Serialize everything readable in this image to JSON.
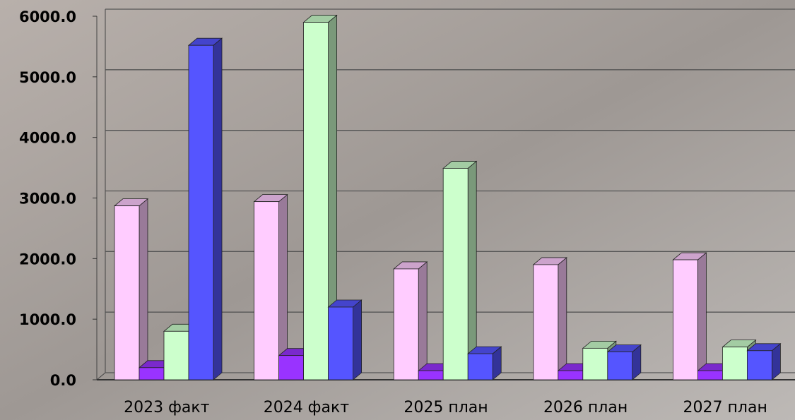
{
  "chart_data": {
    "type": "bar3d",
    "categories": [
      "2023 факт",
      "2024 факт",
      "2025 план",
      "2026 план",
      "2027 план"
    ],
    "series": [
      {
        "color": "#ffccff",
        "values": [
          2870,
          2940,
          1830,
          1900,
          1980
        ]
      },
      {
        "color": "#9933ff",
        "values": [
          200,
          400,
          150,
          150,
          150
        ]
      },
      {
        "color": "#ccffcc",
        "values": [
          800,
          5900,
          3490,
          520,
          540
        ]
      },
      {
        "color": "#5555ff",
        "values": [
          5520,
          1200,
          430,
          460,
          480
        ]
      }
    ],
    "ylim": [
      0,
      6000
    ],
    "yticks": [
      {
        "value": 0,
        "label": "0.0"
      },
      {
        "value": 1000,
        "label": "1000.0"
      },
      {
        "value": 2000,
        "label": "2000.0"
      },
      {
        "value": 3000,
        "label": "3000.0"
      },
      {
        "value": 4000,
        "label": "4000.0"
      },
      {
        "value": 5000,
        "label": "5000.0"
      },
      {
        "value": 6000,
        "label": "6000.0"
      }
    ],
    "grid": true
  }
}
